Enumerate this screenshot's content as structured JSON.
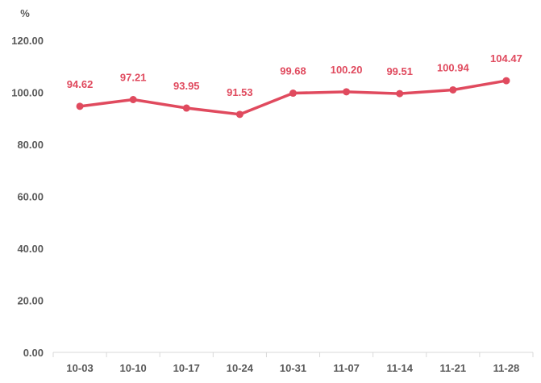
{
  "chart_data": {
    "type": "line",
    "title": "",
    "xlabel": "",
    "ylabel": "%",
    "ylim": [
      0,
      120
    ],
    "yticks": [
      "0.00",
      "20.00",
      "40.00",
      "60.00",
      "80.00",
      "100.00",
      "120.00"
    ],
    "grid": false,
    "categories": [
      "10-03",
      "10-10",
      "10-17",
      "10-24",
      "10-31",
      "11-07",
      "11-14",
      "11-21",
      "11-28"
    ],
    "series": [
      {
        "values": [
          94.62,
          97.21,
          93.95,
          91.53,
          99.68,
          100.2,
          99.51,
          100.94,
          104.47
        ],
        "labels": [
          "94.62",
          "97.21",
          "93.95",
          "91.53",
          "99.68",
          "100.20",
          "99.51",
          "100.94",
          "104.47"
        ],
        "color": "#E04A5E"
      }
    ]
  }
}
